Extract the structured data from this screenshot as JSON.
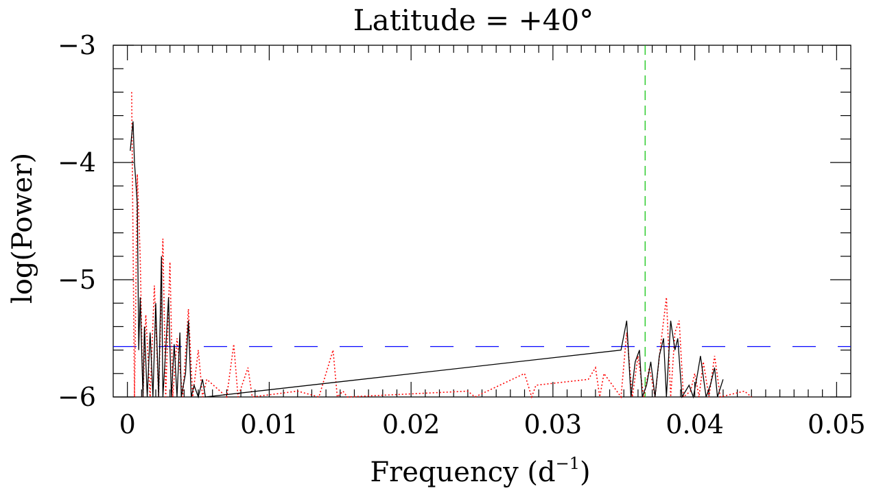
{
  "chart_data": {
    "type": "line",
    "title": "Latitude = +40°",
    "xlabel_main": "Frequency (d",
    "xlabel_sup": "−1",
    "xlabel_end": ")",
    "ylabel": "log(Power)",
    "xlim": [
      -0.001,
      0.051
    ],
    "ylim": [
      -6,
      -3
    ],
    "xticks": [
      0,
      0.01,
      0.02,
      0.03,
      0.04,
      0.05
    ],
    "xtick_labels": [
      "0",
      "0.01",
      "0.02",
      "0.03",
      "0.04",
      "0.05"
    ],
    "yticks": [
      -3,
      -4,
      -5,
      -6
    ],
    "ytick_labels": [
      "−3",
      "−4",
      "−5",
      "−6"
    ],
    "threshold": -5.57,
    "vline": 0.0365,
    "colors": {
      "series_solid": "#000000",
      "series_dotted": "#ff0000",
      "threshold": "#0000ff",
      "vline": "#00c000"
    },
    "series": [
      {
        "style": "solid",
        "x": [
          0.0002,
          0.0004,
          0.0005,
          0.0007,
          0.0008,
          0.0009,
          0.0011,
          0.0012,
          0.0014,
          0.0016,
          0.0018,
          0.002,
          0.0022,
          0.0024,
          0.0025,
          0.0027,
          0.0029,
          0.0031,
          0.0033,
          0.0035,
          0.0037,
          0.0038,
          0.0041,
          0.0043,
          0.0045,
          0.0047,
          0.005,
          0.0053,
          0.0055,
          0.0348,
          0.0352,
          0.0355,
          0.0358,
          0.0361,
          0.0363,
          0.0366,
          0.0369,
          0.0372,
          0.0375,
          0.0378,
          0.038,
          0.0383,
          0.0386,
          0.0388,
          0.0391,
          0.0396,
          0.0399,
          0.0402,
          0.0404,
          0.0408,
          0.0411,
          0.0414,
          0.0416,
          0.042
        ],
        "y": [
          -3.9,
          -3.65,
          -4.0,
          -4.35,
          -5.6,
          -5.15,
          -6.0,
          -5.4,
          -6.0,
          -5.45,
          -6.0,
          -5.2,
          -6.0,
          -4.8,
          -6.0,
          -5.6,
          -5.15,
          -6.0,
          -5.55,
          -6.0,
          -5.45,
          -6.0,
          -5.8,
          -5.35,
          -6.0,
          -5.9,
          -6.0,
          -5.85,
          -6.0,
          -5.6,
          -5.35,
          -6.0,
          -5.7,
          -5.6,
          -6.0,
          -5.9,
          -5.7,
          -6.0,
          -5.65,
          -5.5,
          -6.0,
          -5.35,
          -5.6,
          -5.5,
          -6.0,
          -5.9,
          -6.0,
          -5.8,
          -5.65,
          -6.0,
          -5.9,
          -5.75,
          -6.0,
          -5.85
        ]
      },
      {
        "style": "dotted",
        "x": [
          0.0003,
          0.0005,
          0.0007,
          0.0009,
          0.0011,
          0.0013,
          0.0016,
          0.0019,
          0.0022,
          0.0025,
          0.0027,
          0.003,
          0.0032,
          0.0035,
          0.0039,
          0.0043,
          0.0046,
          0.005,
          0.0053,
          0.0056,
          0.007,
          0.0075,
          0.0078,
          0.0085,
          0.0088,
          0.012,
          0.0135,
          0.0145,
          0.0148,
          0.0152,
          0.0155,
          0.024,
          0.0245,
          0.028,
          0.0285,
          0.0288,
          0.0325,
          0.033,
          0.0333,
          0.0336,
          0.0348,
          0.0352,
          0.0356,
          0.036,
          0.0364,
          0.0368,
          0.0372,
          0.0376,
          0.038,
          0.0383,
          0.0386,
          0.0389,
          0.0392,
          0.0397,
          0.04,
          0.0403,
          0.0406,
          0.041,
          0.0414,
          0.0418,
          0.0435,
          0.044
        ],
        "y": [
          -3.4,
          -6.0,
          -4.1,
          -4.8,
          -6.0,
          -5.3,
          -6.0,
          -5.05,
          -6.0,
          -4.65,
          -6.0,
          -4.85,
          -6.0,
          -5.5,
          -6.0,
          -5.25,
          -6.0,
          -5.6,
          -6.0,
          -5.85,
          -6.0,
          -5.55,
          -6.0,
          -5.75,
          -6.0,
          -5.95,
          -6.0,
          -5.6,
          -6.0,
          -5.95,
          -6.0,
          -5.95,
          -6.0,
          -5.8,
          -6.0,
          -5.9,
          -5.85,
          -5.75,
          -6.0,
          -5.8,
          -6.0,
          -5.45,
          -6.0,
          -5.65,
          -6.0,
          -5.75,
          -6.0,
          -5.55,
          -5.15,
          -6.0,
          -5.45,
          -5.35,
          -6.0,
          -5.95,
          -5.8,
          -6.0,
          -5.7,
          -6.0,
          -5.65,
          -6.0,
          -5.95,
          -6.0
        ]
      }
    ]
  }
}
